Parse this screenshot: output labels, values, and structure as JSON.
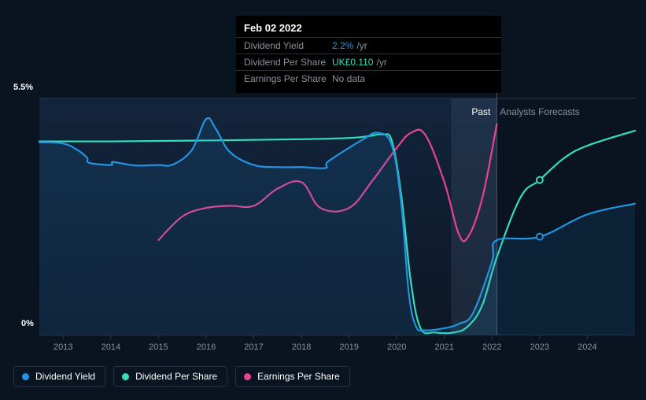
{
  "tooltip": {
    "date": "Feb 02 2022",
    "rows": [
      {
        "label": "Dividend Yield",
        "value": "2.2%",
        "valueColor": "#2394df",
        "unit": "/yr"
      },
      {
        "label": "Dividend Per Share",
        "value": "UK£0.110",
        "valueColor": "#32debc",
        "unit": "/yr"
      },
      {
        "label": "Earnings Per Share",
        "value": "No data",
        "valueColor": "#8a9099",
        "unit": ""
      }
    ]
  },
  "chart": {
    "background": "#0a1420",
    "plotBg": "#101c2e",
    "gridColor": "#2a3547",
    "ymax_label": "5.5%",
    "ymin_label": "0%",
    "xLabels": [
      "2013",
      "2014",
      "2015",
      "2016",
      "2017",
      "2018",
      "2019",
      "2020",
      "2021",
      "2022",
      "2023",
      "2024"
    ],
    "xStart": 2012.5,
    "xEnd": 2025,
    "pastEnd": 2022.1,
    "forecastStart": 2023,
    "ymin": 0,
    "ymax": 5.5,
    "labels": {
      "past": "Past",
      "future": "Analysts Forecasts"
    },
    "scrubberX": 2022.1,
    "series": [
      {
        "name": "Dividend Yield",
        "color": "#2394df",
        "fill": true,
        "fillColor": "rgba(35,148,223,0.12)",
        "width": 2.2,
        "forecastMarker": {
          "x": 2023,
          "y": 2.28
        },
        "points": [
          [
            2012.5,
            4.48
          ],
          [
            2013,
            4.45
          ],
          [
            2013.3,
            4.3
          ],
          [
            2013.5,
            4.12
          ],
          [
            2013.55,
            4.0
          ],
          [
            2014,
            3.95
          ],
          [
            2014.05,
            4.02
          ],
          [
            2014.5,
            3.94
          ],
          [
            2015,
            3.95
          ],
          [
            2015.3,
            3.96
          ],
          [
            2015.7,
            4.3
          ],
          [
            2016,
            5.02
          ],
          [
            2016.2,
            4.8
          ],
          [
            2016.5,
            4.25
          ],
          [
            2017,
            3.95
          ],
          [
            2017.5,
            3.9
          ],
          [
            2018,
            3.9
          ],
          [
            2018.5,
            3.88
          ],
          [
            2018.55,
            4.02
          ],
          [
            2019,
            4.35
          ],
          [
            2019.3,
            4.55
          ],
          [
            2019.6,
            4.7
          ],
          [
            2019.9,
            4.4
          ],
          [
            2020.1,
            3.0
          ],
          [
            2020.25,
            1.0
          ],
          [
            2020.4,
            0.2
          ],
          [
            2020.6,
            0.1
          ],
          [
            2021,
            0.15
          ],
          [
            2021.3,
            0.25
          ],
          [
            2021.6,
            0.5
          ],
          [
            2022,
            1.7
          ],
          [
            2022.1,
            2.2
          ],
          [
            2023,
            2.28
          ],
          [
            2024,
            2.8
          ],
          [
            2025,
            3.05
          ]
        ]
      },
      {
        "name": "Dividend Per Share",
        "color": "#32debc",
        "fill": false,
        "width": 2.2,
        "forecastMarker": {
          "x": 2023,
          "y": 3.6
        },
        "points": [
          [
            2012.5,
            4.5
          ],
          [
            2014,
            4.5
          ],
          [
            2016,
            4.52
          ],
          [
            2018,
            4.55
          ],
          [
            2019,
            4.58
          ],
          [
            2019.4,
            4.62
          ],
          [
            2019.7,
            4.66
          ],
          [
            2019.9,
            4.5
          ],
          [
            2020.1,
            3.2
          ],
          [
            2020.3,
            1.2
          ],
          [
            2020.5,
            0.15
          ],
          [
            2020.8,
            0.05
          ],
          [
            2021.2,
            0.05
          ],
          [
            2021.5,
            0.2
          ],
          [
            2021.8,
            0.7
          ],
          [
            2022.1,
            1.8
          ],
          [
            2022.6,
            3.2
          ],
          [
            2023,
            3.6
          ],
          [
            2023.5,
            4.1
          ],
          [
            2024,
            4.4
          ],
          [
            2025,
            4.75
          ]
        ]
      },
      {
        "name": "Earnings Per Share",
        "color": "#e84393",
        "fill": false,
        "width": 2.2,
        "points": [
          [
            2015,
            2.2
          ],
          [
            2015.5,
            2.75
          ],
          [
            2016,
            2.95
          ],
          [
            2016.5,
            3.0
          ],
          [
            2017,
            3.0
          ],
          [
            2017.5,
            3.4
          ],
          [
            2018,
            3.55
          ],
          [
            2018.4,
            2.95
          ],
          [
            2019,
            2.95
          ],
          [
            2019.5,
            3.6
          ],
          [
            2020,
            4.35
          ],
          [
            2020.3,
            4.7
          ],
          [
            2020.6,
            4.65
          ],
          [
            2021,
            3.55
          ],
          [
            2021.3,
            2.35
          ],
          [
            2021.5,
            2.28
          ],
          [
            2021.8,
            3.2
          ],
          [
            2022.1,
            4.9
          ]
        ]
      }
    ]
  },
  "legend": [
    {
      "label": "Dividend Yield",
      "color": "#2394df"
    },
    {
      "label": "Dividend Per Share",
      "color": "#32debc"
    },
    {
      "label": "Earnings Per Share",
      "color": "#e84393"
    }
  ]
}
